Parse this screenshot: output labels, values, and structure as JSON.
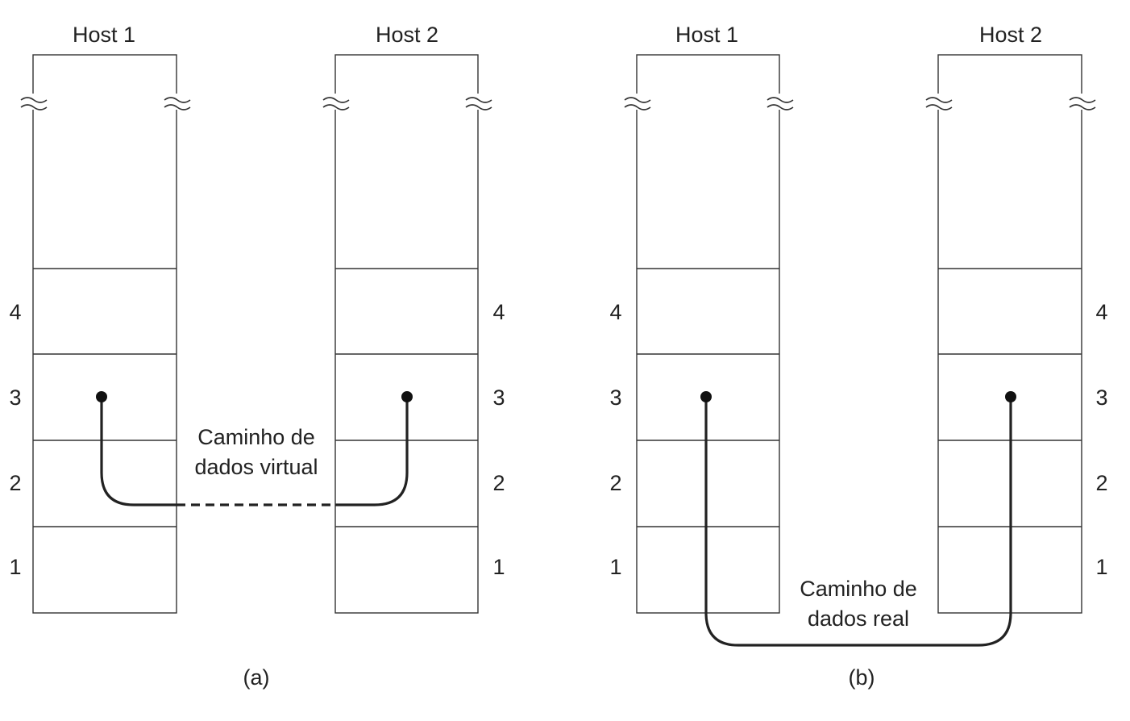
{
  "panels": [
    {
      "caption": "(a)",
      "host_left": "Host 1",
      "host_right": "Host 2",
      "layers_left": [
        "4",
        "3",
        "2",
        "1"
      ],
      "layers_right": [
        "4",
        "3",
        "2",
        "1"
      ],
      "path_label_line1": "Caminho de",
      "path_label_line2": "dados virtual"
    },
    {
      "caption": "(b)",
      "host_left": "Host 1",
      "host_right": "Host 2",
      "layers_left": [
        "4",
        "3",
        "2",
        "1"
      ],
      "layers_right": [
        "4",
        "3",
        "2",
        "1"
      ],
      "path_label_line1": "Caminho de",
      "path_label_line2": "dados real"
    }
  ]
}
